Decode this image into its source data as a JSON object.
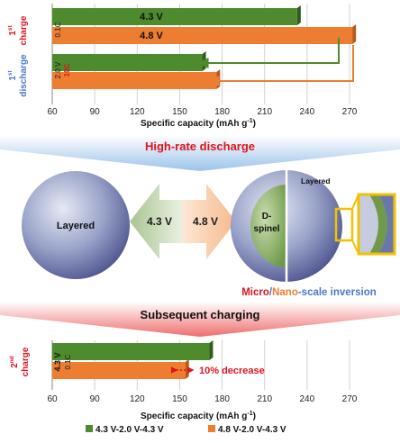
{
  "top_chart": {
    "charge_label_superscript": "st",
    "charge_label_prefix": "1",
    "charge_label_word": "charge",
    "discharge_label_prefix": "1",
    "discharge_label_superscript": "st",
    "discharge_label_word": "discharge",
    "xlabel": "Specific capacity (mAh g",
    "xlabel_sup": "-1",
    "xlabel_end": ")",
    "ticks": [
      "60",
      "90",
      "120",
      "150",
      "180",
      "210",
      "240",
      "270"
    ],
    "rate_charge": "0.1C",
    "rate_discharge_v": "2.0 V",
    "rate_discharge_c": "10C"
  },
  "middle": {
    "banner_top": "High-rate discharge",
    "layered_left": "Layered",
    "layered_right": "Layered",
    "spinel_line1": "D-",
    "spinel_line2": "spinel",
    "arrow_left_label": "4.3 V",
    "arrow_right_label": "4.8 V",
    "inversion_micro": "Micro",
    "inversion_slash": "/",
    "inversion_nano": "Nano",
    "inversion_rest": "-scale  inversion",
    "banner_bottom": "Subsequent charging"
  },
  "bottom_chart": {
    "label_prefix": "2",
    "label_superscript": "nd",
    "label_word": "charge",
    "rate_v": "4.3 V",
    "rate_c": "0.1C",
    "decrease": "10% decrease",
    "xlabel": "Specific capacity (mAh g",
    "xlabel_sup": "-1",
    "xlabel_end": ")",
    "ticks": [
      "60",
      "90",
      "120",
      "150",
      "180",
      "210",
      "240",
      "270"
    ]
  },
  "legend": [
    {
      "label": "4.3 V-2.0 V-4.3 V",
      "color": "#4e8a2e"
    },
    {
      "label": "4.8 V-2.0 V-4.3 V",
      "color": "#ed7d31"
    }
  ],
  "chart_data": [
    {
      "type": "bar",
      "orientation": "horizontal",
      "xlim": [
        60,
        270
      ],
      "categories": [
        "1st charge (0.1C)",
        "1st discharge (2.0 V, 10C)"
      ],
      "series": [
        {
          "name": "4.3 V",
          "values": [
            233,
            166
          ]
        },
        {
          "name": "4.8 V",
          "values": [
            272,
            176
          ]
        }
      ]
    },
    {
      "type": "bar",
      "orientation": "horizontal",
      "xlim": [
        60,
        270
      ],
      "categories": [
        "2nd charge (4.3 V, 0.1C)"
      ],
      "series": [
        {
          "name": "4.3 V-2.0 V-4.3 V",
          "values": [
            171
          ]
        },
        {
          "name": "4.8 V-2.0 V-4.3 V",
          "values": [
            154
          ]
        }
      ]
    }
  ],
  "colors": {
    "green": "#4e8a2e",
    "green_dark": "#2f5d1a",
    "orange": "#ed7d31",
    "orange_dark": "#b75a17",
    "red_text": "#e0141e",
    "blue_text": "#4a78c8",
    "arrow_green_fill": "#b9cfa6",
    "arrow_orange_fill": "#f8c9a4",
    "highlight": "#f2c200"
  }
}
